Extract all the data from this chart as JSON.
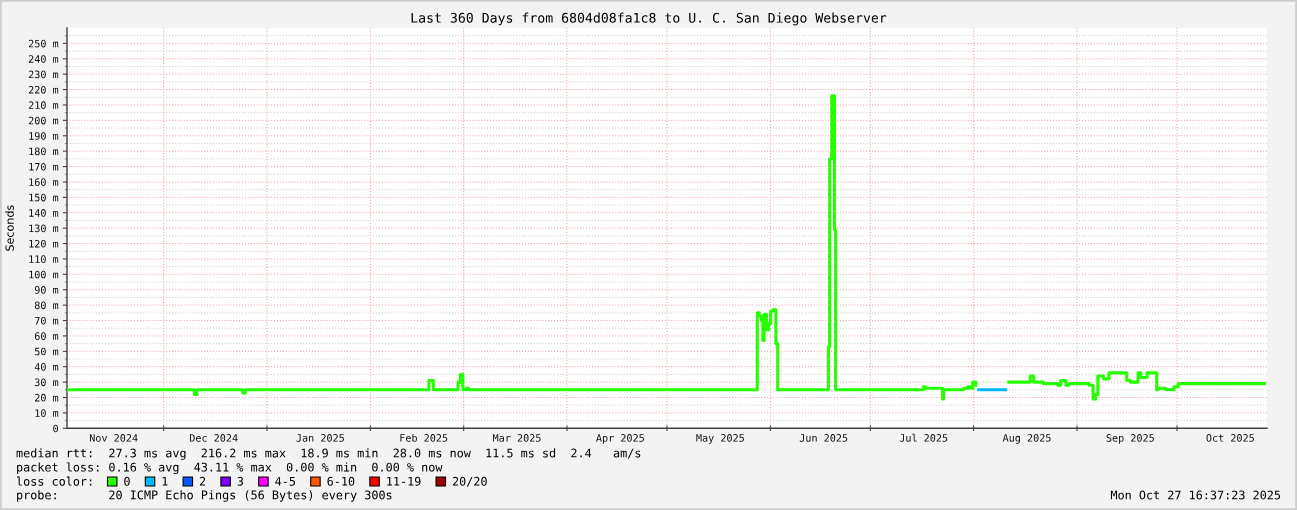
{
  "chart_data": {
    "type": "step",
    "title": "Last 360 Days from 6804d08fa1c8 to U. C. San Diego Webserver",
    "ylabel": "Seconds",
    "legend_title": "loss color:",
    "legend": "bottom",
    "grid": true,
    "annotations": [
      "median rtt:  27.3 ms avg  216.2 ms max  18.9 ms min  28.0 ms now  11.5 ms sd  2.4   am/s",
      "packet loss: 0.16 % avg  43.11 % max  0.00 % min  0.00 % now",
      "probe:       20 ICMP Echo Pings (56 Bytes) every 300s",
      "Mon Oct 27 16:37:23 2025"
    ],
    "xlim": [
      "2024-11-02",
      "2025-10-28"
    ],
    "xticks": [
      {
        "value": "2024-11-16",
        "label": "Nov 2024"
      },
      {
        "value": "2024-12-01",
        "label": null
      },
      {
        "value": "2024-12-16",
        "label": "Dec 2024"
      },
      {
        "value": "2025-01-01",
        "label": null
      },
      {
        "value": "2025-01-17",
        "label": "Jan 2025"
      },
      {
        "value": "2025-02-01",
        "label": null
      },
      {
        "value": "2025-02-17",
        "label": "Feb 2025"
      },
      {
        "value": "2025-03-01",
        "label": null
      },
      {
        "value": "2025-03-17",
        "label": "Mar 2025"
      },
      {
        "value": "2025-04-01",
        "label": null
      },
      {
        "value": "2025-04-17",
        "label": "Apr 2025"
      },
      {
        "value": "2025-05-01",
        "label": null
      },
      {
        "value": "2025-05-17",
        "label": "May 2025"
      },
      {
        "value": "2025-06-01",
        "label": null
      },
      {
        "value": "2025-06-17",
        "label": "Jun 2025"
      },
      {
        "value": "2025-07-01",
        "label": null
      },
      {
        "value": "2025-07-17",
        "label": "Jul 2025"
      },
      {
        "value": "2025-08-01",
        "label": null
      },
      {
        "value": "2025-08-17",
        "label": "Aug 2025"
      },
      {
        "value": "2025-09-01",
        "label": null
      },
      {
        "value": "2025-09-17",
        "label": "Sep 2025"
      },
      {
        "value": "2025-10-01",
        "label": null
      },
      {
        "value": "2025-10-17",
        "label": "Oct 2025"
      }
    ],
    "ylim": [
      0,
      260
    ],
    "yticks": [
      0,
      {
        "value": 5,
        "label": null
      },
      {
        "value": 10,
        "label": "10 m"
      },
      {
        "value": 15,
        "label": null
      },
      {
        "value": 20,
        "label": "20 m"
      },
      {
        "value": 25,
        "label": null
      },
      {
        "value": 30,
        "label": "30 m"
      },
      {
        "value": 35,
        "label": null
      },
      {
        "value": 40,
        "label": "40 m"
      },
      {
        "value": 45,
        "label": null
      },
      {
        "value": 50,
        "label": "50 m"
      },
      {
        "value": 55,
        "label": null
      },
      {
        "value": 60,
        "label": "60 m"
      },
      {
        "value": 65,
        "label": null
      },
      {
        "value": 70,
        "label": "70 m"
      },
      {
        "value": 75,
        "label": null
      },
      {
        "value": 80,
        "label": "80 m"
      },
      {
        "value": 85,
        "label": null
      },
      {
        "value": 90,
        "label": "90 m"
      },
      {
        "value": 95,
        "label": null
      },
      {
        "value": 100,
        "label": "100 m"
      },
      {
        "value": 105,
        "label": null
      },
      {
        "value": 110,
        "label": "110 m"
      },
      {
        "value": 115,
        "label": null
      },
      {
        "value": 120,
        "label": "120 m"
      },
      {
        "value": 125,
        "label": null
      },
      {
        "value": 130,
        "label": "130 m"
      },
      {
        "value": 135,
        "label": null
      },
      {
        "value": 140,
        "label": "140 m"
      },
      {
        "value": 145,
        "label": null
      },
      {
        "value": 150,
        "label": "150 m"
      },
      {
        "value": 155,
        "label": null
      },
      {
        "value": 160,
        "label": "160 m"
      },
      {
        "value": 165,
        "label": null
      },
      {
        "value": 170,
        "label": "170 m"
      },
      {
        "value": 175,
        "label": null
      },
      {
        "value": 180,
        "label": "180 m"
      },
      {
        "value": 185,
        "label": null
      },
      {
        "value": 190,
        "label": "190 m"
      },
      {
        "value": 195,
        "label": null
      },
      {
        "value": 200,
        "label": "200 m"
      },
      {
        "value": 205,
        "label": null
      },
      {
        "value": 210,
        "label": "210 m"
      },
      {
        "value": 215,
        "label": null
      },
      {
        "value": 220,
        "label": "220 m"
      },
      {
        "value": 225,
        "label": null
      },
      {
        "value": 230,
        "label": "230 m"
      },
      {
        "value": 235,
        "label": null
      },
      {
        "value": 240,
        "label": "240 m"
      },
      {
        "value": 245,
        "label": null
      },
      {
        "value": 250,
        "label": "250 m"
      },
      {
        "value": 255,
        "label": null
      }
    ],
    "series": [
      {
        "name": "0",
        "color": "#26ff00",
        "x": [
          "2024-11-02",
          "2024-12-10T06:00",
          "2024-12-11",
          "2024-12-24T18:00",
          "2024-12-25T12:00",
          "2025-02-18T14:00",
          "2025-02-19T22:00",
          "2025-02-27T08:00",
          "2025-02-28",
          "2025-02-28T18:00",
          "2025-03-01T18:00",
          "2025-03-02T12:00",
          "2025-05-28T02:00",
          "2025-05-28T16:00",
          "2025-05-29T08:00",
          "2025-05-29T18:00",
          "2025-05-30T04:00",
          "2025-05-30T20:00",
          "2025-05-31T12:00",
          "2025-06-01T02:00",
          "2025-06-01T18:00",
          "2025-06-02T16:00",
          "2025-06-03T05:00",
          "2025-06-18T10:00",
          "2025-06-18T19:00",
          "2025-06-19T10:00",
          "2025-06-20T06:00",
          "2025-06-20T14:00",
          "2025-07-16T22:00",
          "2025-07-17T12:00",
          "2025-07-22T16:00",
          "2025-07-23",
          "2025-07-29",
          "2025-07-30T06:00",
          "2025-07-31",
          "2025-07-31T18:00",
          "2025-08-01T16:00",
          "2025-08-02T02:00",
          "2025-08-11T02:00",
          "2025-08-18",
          "2025-08-19",
          "2025-08-22",
          "2025-08-26T04:00",
          "2025-08-27T02:00",
          "2025-08-28T16:00",
          "2025-08-29T12:00",
          "2025-09-04T16:00",
          "2025-09-05T20:00",
          "2025-09-06T14:00",
          "2025-09-07T06:00",
          "2025-09-09",
          "2025-09-10T14:00",
          "2025-09-15T22:00",
          "2025-09-17",
          "2025-09-19T08:00",
          "2025-09-20T04:00",
          "2025-09-22",
          "2025-09-24T22:00",
          "2025-09-25T10:00",
          "2025-09-27T14:00",
          "2025-09-30T02:00",
          "2025-10-01T08:00",
          "2025-10-27T16:37"
        ],
        "values": [
          25,
          22,
          25,
          23,
          25,
          31,
          25,
          30,
          35,
          25,
          26,
          25,
          75,
          73,
          70,
          57,
          74,
          64,
          68,
          76,
          77,
          55,
          25,
          53,
          175,
          216,
          129,
          25,
          27,
          26,
          19,
          25,
          26,
          27,
          26,
          30,
          28,
          null,
          30,
          34,
          30,
          29,
          28,
          31,
          28,
          29,
          28,
          19,
          22,
          34,
          32,
          36,
          31,
          30,
          36,
          33,
          36,
          25,
          26,
          25,
          27,
          29,
          29
        ]
      },
      {
        "name": "1",
        "color": "#00b8ff",
        "x": [
          "2025-08-02T02:00",
          "2025-08-11T02:00"
        ],
        "values": [
          25,
          25
        ]
      },
      {
        "name": "2",
        "color": "#0059ff"
      },
      {
        "name": "3",
        "color": "#7e00ff"
      },
      {
        "name": "4-5",
        "color": "#ff00ff"
      },
      {
        "name": "6-10",
        "color": "#ff5500"
      },
      {
        "name": "11-19",
        "color": "#ff0000"
      },
      {
        "name": "20/20",
        "color": "#a00000"
      }
    ]
  }
}
